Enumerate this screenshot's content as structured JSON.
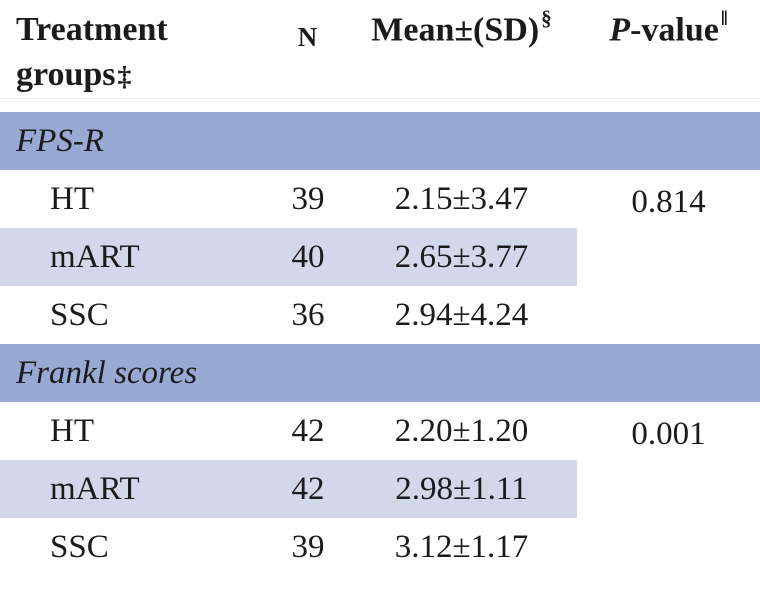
{
  "colors": {
    "section_band": "#98a9d3",
    "row_stripe": "#d2d8ea",
    "header_rule": "#ececec",
    "text": "#1b1b1b"
  },
  "table": {
    "header": {
      "treatment_line1": "Treatment",
      "treatment_line2": "groups",
      "treatment_marker": "‡",
      "n": "N",
      "mean_sd": "Mean±(SD)",
      "mean_sd_marker": "§",
      "p_italic": "P",
      "p_rest": "-value",
      "p_marker": "‖"
    },
    "sections": [
      {
        "label": "FPS-R",
        "p_value": "0.814",
        "rows": [
          {
            "group": "HT",
            "n": "39",
            "mean_sd": "2.15±3.47"
          },
          {
            "group": "mART",
            "n": "40",
            "mean_sd": "2.65±3.77"
          },
          {
            "group": "SSC",
            "n": "36",
            "mean_sd": "2.94±4.24"
          }
        ]
      },
      {
        "label": "Frankl scores",
        "p_value": "0.001",
        "rows": [
          {
            "group": "HT",
            "n": "42",
            "mean_sd": "2.20±1.20"
          },
          {
            "group": "mART",
            "n": "42",
            "mean_sd": "2.98±1.11"
          },
          {
            "group": "SSC",
            "n": "39",
            "mean_sd": "3.12±1.17"
          }
        ]
      }
    ]
  }
}
